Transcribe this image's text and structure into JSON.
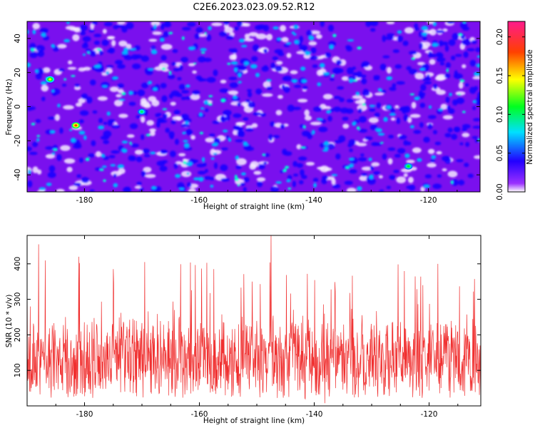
{
  "title": "C2E6.2023.023.09.52.R12",
  "chart_data": [
    {
      "type": "heatmap",
      "xlabel": "Height of straight line (km)",
      "ylabel": "Frequency (Hz)",
      "xlim": [
        -190,
        -111
      ],
      "ylim": [
        -50,
        50
      ],
      "x_ticks": [
        -180,
        -160,
        -140,
        -120
      ],
      "y_ticks": [
        -40,
        -20,
        0,
        20,
        40
      ],
      "colorbar": {
        "label": "Normalized spectral amplitude",
        "range": [
          0,
          0.22
        ],
        "ticks": [
          "0.00",
          "0.05",
          "0.10",
          "0.15",
          "0.20"
        ],
        "colormap": [
          "#ffffff",
          "#7a00ff",
          "#0000ff",
          "#00ffff",
          "#00ff00",
          "#ffff00",
          "#ff0000",
          "#ff1a8c"
        ]
      },
      "hotspots": [
        {
          "x": -181.5,
          "y": -11,
          "value": 0.18
        },
        {
          "x": -186,
          "y": 16,
          "value": 0.14
        },
        {
          "x": -123.5,
          "y": -35,
          "value": 0.11
        },
        {
          "x": -170,
          "y": -3,
          "value": 0.1
        }
      ]
    },
    {
      "type": "line",
      "xlabel": "Height of straight line (km)",
      "ylabel": "SNR (10 * v/v)",
      "xlim": [
        -190,
        -111
      ],
      "ylim": [
        0,
        480
      ],
      "x_ticks": [
        -180,
        -160,
        -140,
        -120
      ],
      "y_ticks": [
        100,
        200,
        300,
        400
      ],
      "baseline": 130,
      "peaks": [
        {
          "x": -147.5,
          "y": 480
        },
        {
          "x": -188,
          "y": 455
        },
        {
          "x": -181,
          "y": 420
        },
        {
          "x": -169.5,
          "y": 405
        },
        {
          "x": -175,
          "y": 385
        },
        {
          "x": -118.5,
          "y": 400
        }
      ],
      "colors": {
        "series": "#f03030"
      }
    }
  ]
}
